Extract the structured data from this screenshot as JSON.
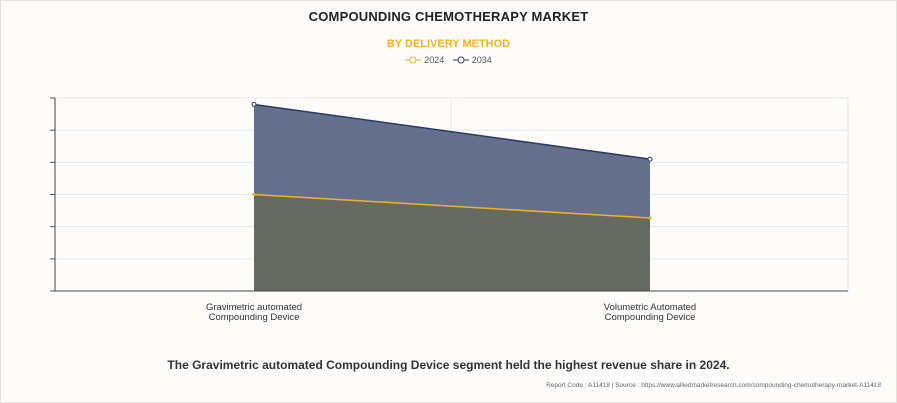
{
  "header": {
    "title": "COMPOUNDING CHEMOTHERAPY MARKET",
    "subtitle": "BY DELIVERY METHOD"
  },
  "colors": {
    "series_2024": "#f0b224",
    "series_2034": "#2b3a67",
    "fill_2024": "#666a60",
    "fill_2034": "#656f8c",
    "title_accent": "#f0b224"
  },
  "chart_data": {
    "type": "area",
    "categories": [
      "Gravimetric automated Compounding Device",
      "Volumetric Automated Compounding Device"
    ],
    "category_lines": [
      [
        "Gravimetric automated",
        "Compounding Device"
      ],
      [
        "Volumetric Automated",
        "Compounding Device"
      ]
    ],
    "series": [
      {
        "name": "2024",
        "values": [
          3.0,
          2.27
        ]
      },
      {
        "name": "2034",
        "values": [
          5.8,
          4.1
        ]
      }
    ],
    "ylim": [
      0,
      6
    ],
    "grid": true,
    "y_tick_labels_shown": false,
    "legend_position": "top-center"
  },
  "footer": {
    "headline": "The Gravimetric automated Compounding Device segment held the highest revenue share in 2024.",
    "report_line": "Report Code : A11418  |  Source : https://www.alliedmarketresearch.com/compounding-chemotherapy-market-A11418"
  }
}
